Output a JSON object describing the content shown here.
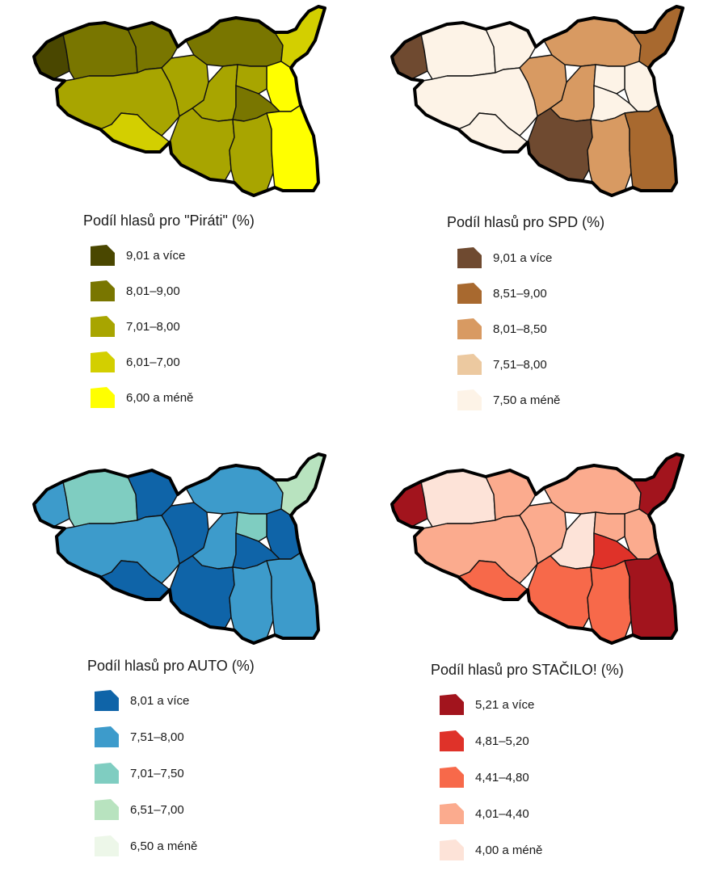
{
  "maps": [
    {
      "id": "pirati",
      "title": "Podíl hlasů pro \"Piráti\" (%)",
      "legend": [
        {
          "label": "9,01 a více",
          "color": "#4a4700"
        },
        {
          "label": "8,01–9,00",
          "color": "#797600"
        },
        {
          "label": "7,01–8,00",
          "color": "#a8a500"
        },
        {
          "label": "6,01–7,00",
          "color": "#d3cf00"
        },
        {
          "label": "6,00 a méně",
          "color": "#ffff00"
        }
      ],
      "regions": [
        0,
        1,
        1,
        2,
        2,
        1,
        3,
        4,
        2,
        2,
        1,
        2,
        2,
        4,
        3
      ]
    },
    {
      "id": "spd",
      "title": "Podíl hlasů pro SPD (%)",
      "legend": [
        {
          "label": "9,01 a více",
          "color": "#6f4a30"
        },
        {
          "label": "8,51–9,00",
          "color": "#a8692f"
        },
        {
          "label": "8,01–8,50",
          "color": "#d89a62"
        },
        {
          "label": "7,51–8,00",
          "color": "#ecc9a0"
        },
        {
          "label": "7,50 a méně",
          "color": "#fdf3e7"
        }
      ],
      "regions": [
        0,
        4,
        4,
        2,
        4,
        2,
        4,
        4,
        2,
        4,
        4,
        0,
        2,
        1,
        1
      ]
    },
    {
      "id": "auto",
      "title": "Podíl hlasů pro AUTO (%)",
      "legend": [
        {
          "label": "8,01 a více",
          "color": "#0f64a8"
        },
        {
          "label": "7,51–8,00",
          "color": "#3d9bcb"
        },
        {
          "label": "7,01–7,50",
          "color": "#7fcdc1"
        },
        {
          "label": "6,51–7,00",
          "color": "#b8e3bf"
        },
        {
          "label": "6,50 a méně",
          "color": "#edf7e9"
        }
      ],
      "regions": [
        1,
        2,
        0,
        0,
        1,
        1,
        0,
        0,
        1,
        2,
        0,
        0,
        1,
        1,
        3
      ]
    },
    {
      "id": "stacilo",
      "title": "Podíl hlasů pro STAČILO! (%)",
      "legend": [
        {
          "label": "5,21 a více",
          "color": "#a2141d"
        },
        {
          "label": "4,81–5,20",
          "color": "#df3229"
        },
        {
          "label": "4,41–4,80",
          "color": "#f7694a"
        },
        {
          "label": "4,01–4,40",
          "color": "#fbab8e"
        },
        {
          "label": "4,00 a méně",
          "color": "#fde3d8"
        }
      ],
      "regions": [
        0,
        4,
        3,
        3,
        3,
        3,
        2,
        3,
        4,
        3,
        1,
        2,
        2,
        0,
        0
      ]
    }
  ]
}
